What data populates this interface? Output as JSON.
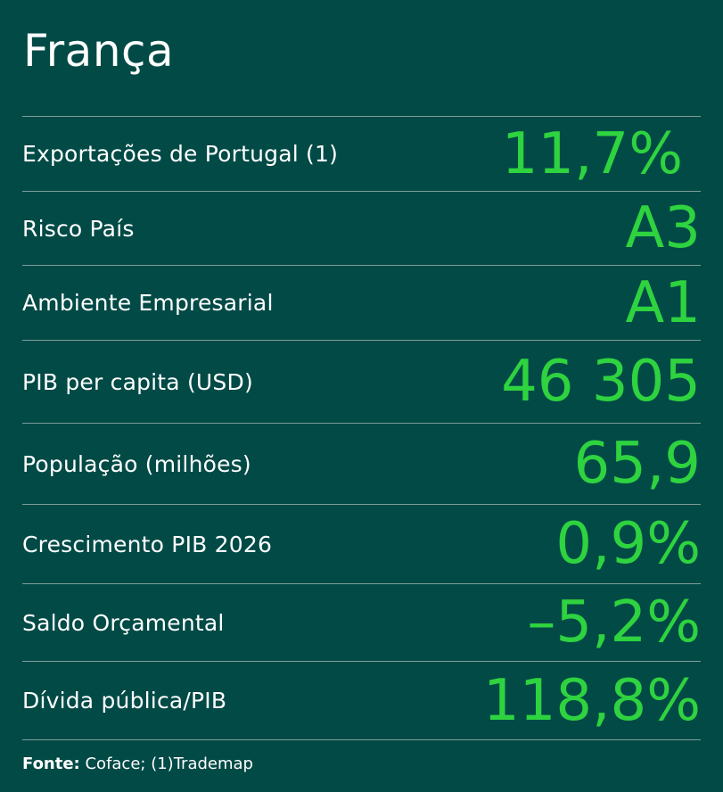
{
  "title": "França",
  "accent_color": "#2ed33f",
  "background_color": "#014a46",
  "rows": [
    {
      "label": "Exportações de Portugal  (1)",
      "value": "11,7%"
    },
    {
      "label": "Risco País",
      "value": "A3"
    },
    {
      "label": "Ambiente Empresarial",
      "value": "A1"
    },
    {
      "label": "PIB per capita (USD)",
      "value": "46 305"
    },
    {
      "label": "População (milhões)",
      "value": "65,9"
    },
    {
      "label": "Crescimento PIB 2026",
      "value": "0,9%"
    },
    {
      "label": "Saldo Orçamental",
      "value": "–5,2%"
    },
    {
      "label": "Dívida pública/PIB",
      "value": "118,8%"
    }
  ],
  "footer": {
    "source_label": "Fonte:",
    "source_text": " Coface; (1)Trademap"
  }
}
